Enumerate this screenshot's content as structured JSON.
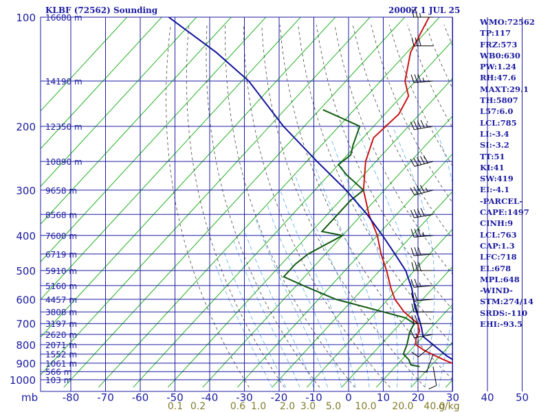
{
  "header": {
    "title": "KLBF (72562) Sounding",
    "datetime": "2000Z  1 JUL 25"
  },
  "indices": [
    "WMO:72562",
    "TP:117",
    "FRZ:573",
    "WB0:630",
    "PW:1.24",
    "RH:47.6",
    "MAXT:29.1",
    "TH:5807",
    "L57:6.0",
    "LCL:785",
    "LI:-3.4",
    "SI:-3.2",
    "TT:51",
    "KI:41",
    "SW:419",
    "EI:-4.1",
    "-PARCEL-",
    "CAPE:1497",
    "CINH:9",
    "LCL:763",
    "CAP:1.3",
    "LFC:718",
    "EL:678",
    "MPL:648",
    "-WIND-",
    "STM:274/14",
    "SRDS:-110",
    "EHI:-93.5"
  ],
  "chart_data": {
    "type": "line",
    "title": "KLBF (72562) Sounding",
    "x_units": "°C",
    "y_units": "mb",
    "x_tick_labels": [
      "-80",
      "-70",
      "-60",
      "-50",
      "-40",
      "-30",
      "-20",
      "-10",
      "0",
      "10",
      "20",
      "30",
      "40",
      "50"
    ],
    "y_tick_labels": [
      "100",
      "200",
      "300",
      "400",
      "500",
      "600",
      "700",
      "800",
      "900",
      "1000"
    ],
    "y_axis_title": "mb",
    "mixing_ratio_labels": [
      "0.1",
      "0.2",
      "0.6",
      "1.0",
      "2.0",
      "3.0",
      "5.0",
      "10.0",
      "20.0",
      "40.0"
    ],
    "mixing_ratio_unit": "g/kg",
    "height_labels": [
      {
        "p": 100,
        "label": "16680 m"
      },
      {
        "p": 150,
        "label": "14190 m"
      },
      {
        "p": 200,
        "label": "12350 m"
      },
      {
        "p": 250,
        "label": "10890 m"
      },
      {
        "p": 300,
        "label": "9658 m"
      },
      {
        "p": 350,
        "label": "8568 m"
      },
      {
        "p": 400,
        "label": "7600 m"
      },
      {
        "p": 450,
        "label": "6719 m"
      },
      {
        "p": 500,
        "label": "5910 m"
      },
      {
        "p": 550,
        "label": "5160 m"
      },
      {
        "p": 600,
        "label": "4457 m"
      },
      {
        "p": 650,
        "label": "3808 m"
      },
      {
        "p": 700,
        "label": "3197 m"
      },
      {
        "p": 750,
        "label": "2620 m"
      },
      {
        "p": 800,
        "label": "2071 m"
      },
      {
        "p": 850,
        "label": "1552 m"
      },
      {
        "p": 900,
        "label": "1061 m"
      },
      {
        "p": 950,
        "label": "566 m"
      },
      {
        "p": 1000,
        "label": "103 m"
      }
    ],
    "series": [
      {
        "kind": "temperature",
        "color": "#c81414",
        "points": [
          [
            29.8,
            920
          ],
          [
            27,
            910
          ],
          [
            22,
            880
          ],
          [
            18,
            855
          ],
          [
            14,
            830
          ],
          [
            10,
            800
          ],
          [
            8.5,
            770
          ],
          [
            7.6,
            735
          ],
          [
            5,
            700
          ],
          [
            -2,
            650
          ],
          [
            -8,
            600
          ],
          [
            -12,
            560
          ],
          [
            -18,
            500
          ],
          [
            -24,
            450
          ],
          [
            -30,
            400
          ],
          [
            -38,
            350
          ],
          [
            -46,
            300
          ],
          [
            -53,
            250
          ],
          [
            -57,
            215
          ],
          [
            -56,
            185
          ],
          [
            -58,
            165
          ],
          [
            -63,
            150
          ],
          [
            -69,
            125
          ],
          [
            -73,
            100
          ]
        ]
      },
      {
        "kind": "dewpoint",
        "color": "#0f5a0f",
        "points": [
          [
            17,
            920
          ],
          [
            14,
            910
          ],
          [
            12,
            880
          ],
          [
            9,
            850
          ],
          [
            7.5,
            800
          ],
          [
            5,
            740
          ],
          [
            4,
            700
          ],
          [
            0,
            675
          ],
          [
            -8,
            650
          ],
          [
            -25,
            600
          ],
          [
            -38,
            550
          ],
          [
            -46,
            520
          ],
          [
            -46,
            480
          ],
          [
            -45,
            450
          ],
          [
            -40,
            400
          ],
          [
            -47,
            390
          ],
          [
            -47,
            350
          ],
          [
            -47,
            320
          ],
          [
            -46,
            300
          ],
          [
            -55,
            272
          ],
          [
            -60,
            255
          ],
          [
            -59,
            240
          ],
          [
            -61,
            225
          ],
          [
            -64,
            200
          ],
          [
            -79,
            180
          ]
        ]
      },
      {
        "kind": "parcel",
        "color": "#10109a",
        "points": [
          [
            29.8,
            920
          ],
          [
            22,
            860
          ],
          [
            15,
            800
          ],
          [
            10,
            760
          ],
          [
            7.3,
            720
          ],
          [
            4.2,
            680
          ],
          [
            -0.2,
            630
          ],
          [
            -6,
            560
          ],
          [
            -12.5,
            500
          ],
          [
            -20,
            450
          ],
          [
            -28.5,
            400
          ],
          [
            -38.5,
            350
          ],
          [
            -51,
            300
          ],
          [
            -67,
            250
          ],
          [
            -86,
            200
          ],
          [
            -108,
            150
          ],
          [
            -125,
            125
          ],
          [
            -148,
            100
          ]
        ]
      }
    ],
    "wind_barbs": [
      {
        "p": 920,
        "dir": 170,
        "spd": 10
      },
      {
        "p": 850,
        "dir": 200,
        "spd": 10
      },
      {
        "p": 800,
        "dir": 230,
        "spd": 10
      },
      {
        "p": 750,
        "dir": 260,
        "spd": 15
      },
      {
        "p": 700,
        "dir": 270,
        "spd": 20
      },
      {
        "p": 650,
        "dir": 270,
        "spd": 20
      },
      {
        "p": 600,
        "dir": 265,
        "spd": 20
      },
      {
        "p": 550,
        "dir": 265,
        "spd": 25
      },
      {
        "p": 500,
        "dir": 270,
        "spd": 30
      },
      {
        "p": 450,
        "dir": 265,
        "spd": 30
      },
      {
        "p": 400,
        "dir": 265,
        "spd": 35
      },
      {
        "p": 350,
        "dir": 260,
        "spd": 40
      },
      {
        "p": 300,
        "dir": 255,
        "spd": 45
      },
      {
        "p": 250,
        "dir": 255,
        "spd": 50
      },
      {
        "p": 200,
        "dir": 260,
        "spd": 45
      },
      {
        "p": 150,
        "dir": 265,
        "spd": 35
      },
      {
        "p": 120,
        "dir": 270,
        "spd": 30
      },
      {
        "p": 100,
        "dir": 270,
        "spd": 25
      }
    ],
    "colors": {
      "grid": "#1a1aa0",
      "isotherm": "#1fb01f",
      "dry_adiabat": "#404040",
      "moist_adiabat": "#55aaee",
      "mixing_label": "#807a2a"
    }
  }
}
